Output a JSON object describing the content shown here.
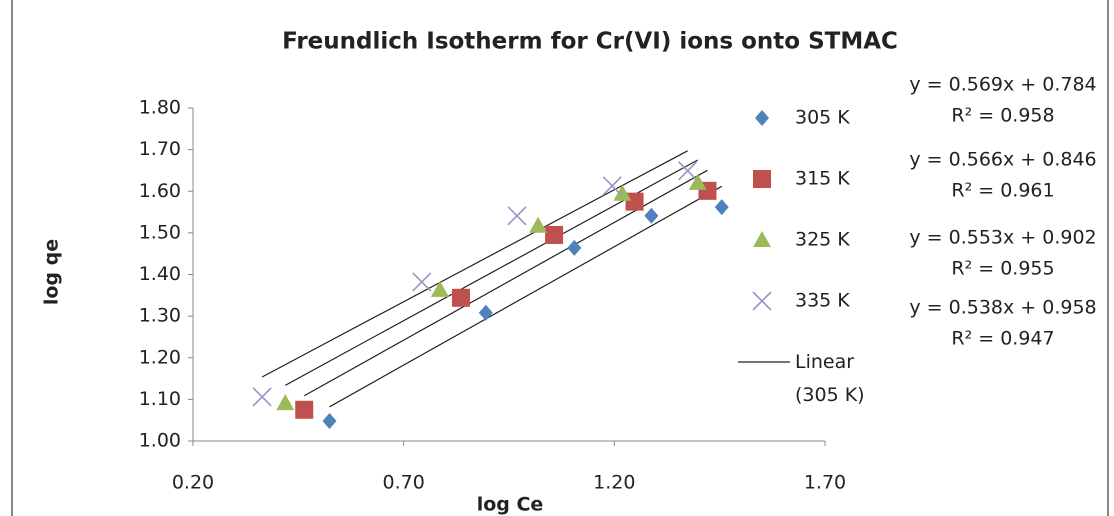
{
  "chart_data": {
    "type": "scatter",
    "title": "Freundlich Isotherm for Cr(VI)  ions onto STMAC",
    "x_label": "log Ce",
    "y_label": "log qe",
    "xlim": [
      0.2,
      1.7
    ],
    "xticks": [
      {
        "value": 0.2,
        "label": "0.20"
      },
      {
        "value": 0.7,
        "label": "0.70"
      },
      {
        "value": 1.2,
        "label": "1.20"
      },
      {
        "value": 1.7,
        "label": "1.70"
      }
    ],
    "ylim": [
      1.0,
      1.8
    ],
    "yticks": [
      {
        "value": 1.0,
        "label": "1.00"
      },
      {
        "value": 1.1,
        "label": "1.10"
      },
      {
        "value": 1.2,
        "label": "1.20"
      },
      {
        "value": 1.3,
        "label": "1.30"
      },
      {
        "value": 1.4,
        "label": "1.40"
      },
      {
        "value": 1.5,
        "label": "1.50"
      },
      {
        "value": 1.6,
        "label": "1.60"
      },
      {
        "value": 1.7,
        "label": "1.70"
      },
      {
        "value": 1.8,
        "label": "1.80"
      }
    ],
    "grid": false,
    "legend": "right",
    "series": [
      {
        "name": "305 K",
        "color": "#4f81bd",
        "marker": "diamond",
        "x": [
          0.524,
          0.895,
          1.105,
          1.288,
          1.455
        ],
        "values": [
          1.048,
          1.308,
          1.464,
          1.541,
          1.562
        ],
        "trendline": {
          "name": "Linear (305 K)",
          "slope": 0.569,
          "intercept": 0.784,
          "equation": "y = 0.569x + 0.784",
          "r2": "R² = 0.958"
        }
      },
      {
        "name": "315 K",
        "color": "#c0504d",
        "marker": "square",
        "x": [
          0.464,
          0.836,
          1.057,
          1.248,
          1.421
        ],
        "values": [
          1.075,
          1.344,
          1.495,
          1.575,
          1.601
        ],
        "trendline": {
          "slope": 0.566,
          "intercept": 0.846,
          "equation": "y = 0.566x + 0.846",
          "r2": "R² = 0.961"
        }
      },
      {
        "name": "325 K",
        "color": "#9bbb59",
        "marker": "triangle",
        "x": [
          0.419,
          0.786,
          1.019,
          1.219,
          1.398
        ],
        "values": [
          1.091,
          1.363,
          1.517,
          1.594,
          1.62
        ],
        "trendline": {
          "slope": 0.553,
          "intercept": 0.902,
          "equation": "y = 0.553x + 0.902",
          "r2": "R² = 0.955"
        }
      },
      {
        "name": "335 K",
        "color": "#9d92c8",
        "marker": "x",
        "x": [
          0.364,
          0.743,
          0.969,
          1.195,
          1.374
        ],
        "values": [
          1.106,
          1.382,
          1.541,
          1.613,
          1.649
        ],
        "trendline": {
          "slope": 0.538,
          "intercept": 0.958,
          "equation": "y = 0.538x + 0.958",
          "r2": "R² = 0.947"
        }
      }
    ]
  }
}
